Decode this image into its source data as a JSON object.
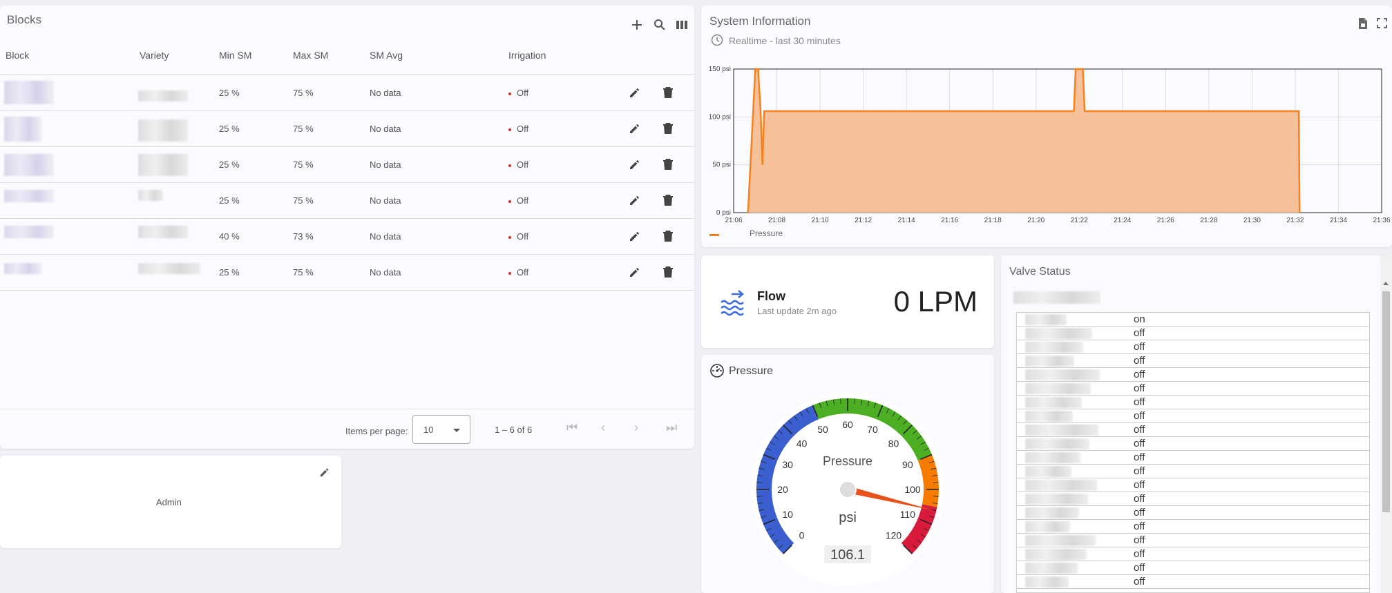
{
  "blocks": {
    "title": "Blocks",
    "toolbar_icons": [
      "plus-icon",
      "search-icon",
      "columns-icon"
    ],
    "columns": [
      "Block",
      "Variety",
      "Min SM",
      "Max SM",
      "SM Avg",
      "Irrigation"
    ],
    "rows": [
      {
        "min": "25 %",
        "max": "75 %",
        "avg": "No data",
        "irr": "Off"
      },
      {
        "min": "25 %",
        "max": "75 %",
        "avg": "No data",
        "irr": "Off"
      },
      {
        "min": "25 %",
        "max": "75 %",
        "avg": "No data",
        "irr": "Off"
      },
      {
        "min": "25 %",
        "max": "75 %",
        "avg": "No data",
        "irr": "Off"
      },
      {
        "min": "40 %",
        "max": "73 %",
        "avg": "No data",
        "irr": "Off"
      },
      {
        "min": "25 %",
        "max": "75 %",
        "avg": "No data",
        "irr": "Off"
      }
    ],
    "paginator": {
      "items_label": "Items per page:",
      "page_size": "10",
      "range": "1 – 6 of 6"
    }
  },
  "admin": {
    "label": "Admin"
  },
  "system": {
    "title": "System Information",
    "subtitle": "Realtime - last 30 minutes",
    "legend": "Pressure",
    "accent": "#f5821f"
  },
  "chart_data": {
    "type": "area",
    "series": [
      {
        "name": "Pressure",
        "x": [
          "21:06:40",
          "21:07:00",
          "21:07:08",
          "21:07:15",
          "21:07:20",
          "21:07:25",
          "21:07:40",
          "21:12",
          "21:16",
          "21:20",
          "21:21:45",
          "21:21:50",
          "21:22:10",
          "21:22:15",
          "21:26",
          "21:30",
          "21:32:10",
          "21:32:12"
        ],
        "y": [
          0,
          150,
          150,
          105,
          50,
          106,
          106,
          106,
          106,
          106,
          106,
          150,
          150,
          106,
          106,
          106,
          106,
          0
        ]
      }
    ],
    "xticks": [
      "21:06",
      "21:08",
      "21:10",
      "21:12",
      "21:14",
      "21:16",
      "21:18",
      "21:20",
      "21:22",
      "21:24",
      "21:26",
      "21:28",
      "21:30",
      "21:32",
      "21:34",
      "21:36"
    ],
    "yticks": [
      "0 psi",
      "50 psi",
      "100 psi",
      "150 psi"
    ],
    "xlim": [
      "21:06",
      "21:36"
    ],
    "ylim": [
      0,
      150
    ],
    "grid": true,
    "legend": "bottom-left",
    "color": "#f5821f"
  },
  "flow": {
    "title": "Flow",
    "subtitle": "Last update 2m ago",
    "value": "0 LPM"
  },
  "pressure_gauge": {
    "title": "Pressure",
    "center_label": "Pressure",
    "unit": "psi",
    "value": 106.1,
    "value_text": "106.1",
    "min": 0,
    "max": 120,
    "ticks": [
      "0",
      "10",
      "20",
      "30",
      "40",
      "50",
      "60",
      "70",
      "80",
      "90",
      "100",
      "110",
      "120"
    ],
    "bands": [
      {
        "from": 0,
        "to": 50,
        "color": "#3b5fce"
      },
      {
        "from": 50,
        "to": 90,
        "color": "#4caf23"
      },
      {
        "from": 90,
        "to": 105,
        "color": "#f57c00"
      },
      {
        "from": 105,
        "to": 120,
        "color": "#d81b3c"
      }
    ]
  },
  "valves": {
    "title": "Valve Status",
    "states": [
      "on",
      "off",
      "off",
      "off",
      "off",
      "off",
      "off",
      "off",
      "off",
      "off",
      "off",
      "off",
      "off",
      "off",
      "off",
      "off",
      "off",
      "off",
      "off",
      "off"
    ]
  }
}
